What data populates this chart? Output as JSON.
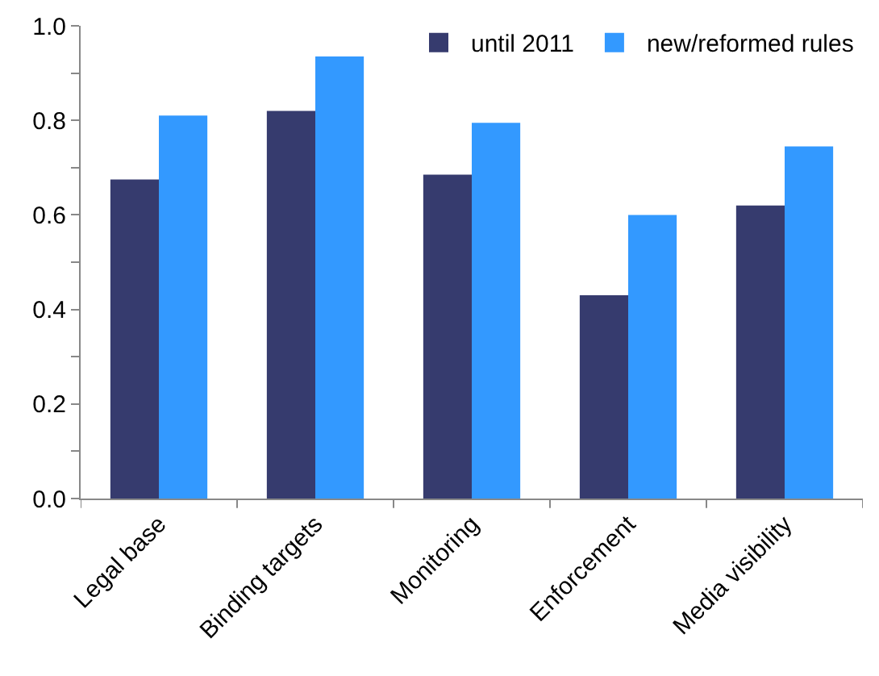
{
  "chart_data": {
    "type": "bar",
    "categories": [
      "Legal base",
      "Binding targets",
      "Monitoring",
      "Enforcement",
      "Media visibility"
    ],
    "series": [
      {
        "name": "until 2011",
        "color": "#363b6e",
        "values": [
          0.675,
          0.82,
          0.685,
          0.43,
          0.62
        ]
      },
      {
        "name": "new/reformed rules",
        "color": "#3399ff",
        "values": [
          0.81,
          0.935,
          0.795,
          0.6,
          0.745
        ]
      }
    ],
    "ylim": [
      0,
      1
    ],
    "yticks": [
      {
        "value": 0,
        "label": "0.0"
      },
      {
        "value": 0.2,
        "label": "0.2"
      },
      {
        "value": 0.4,
        "label": "0.4"
      },
      {
        "value": 0.6,
        "label": "0.6"
      },
      {
        "value": 0.8,
        "label": "0.8"
      },
      {
        "value": 1,
        "label": "1.0"
      }
    ],
    "grid": false,
    "legend": "top right"
  }
}
